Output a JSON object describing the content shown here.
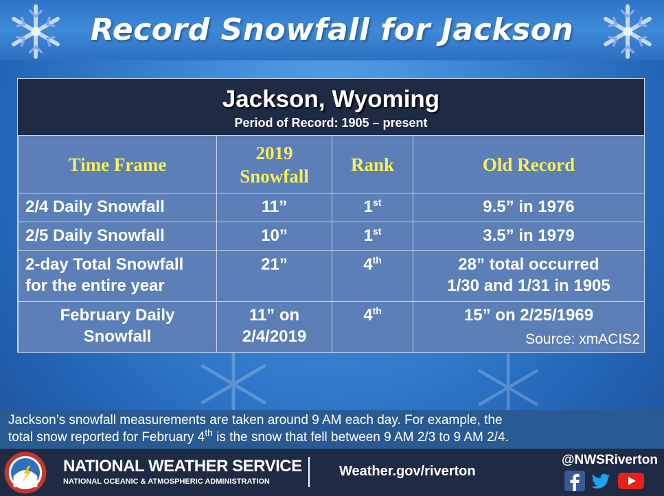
{
  "banner": {
    "title": "Record Snowfall for Jackson"
  },
  "card": {
    "city": "Jackson, Wyoming",
    "period": "Period of Record:  1905 – present",
    "headers": {
      "time_frame": "Time Frame",
      "snowfall_line1": "2019",
      "snowfall_line2": "Snowfall",
      "rank": "Rank",
      "old_record": "Old Record"
    },
    "rows": [
      {
        "time_frame": "2/4 Daily Snowfall",
        "snowfall": "11”",
        "rank_num": "1",
        "rank_suffix": "st",
        "old_record": "9.5” in 1976"
      },
      {
        "time_frame": "2/5 Daily Snowfall",
        "snowfall": "10”",
        "rank_num": "1",
        "rank_suffix": "st",
        "old_record": "3.5” in 1979"
      },
      {
        "time_frame_line1": "2-day Total Snowfall",
        "time_frame_line2": "for the entire year",
        "snowfall": "21”",
        "rank_num": "4",
        "rank_suffix": "th",
        "old_record_line1": "28” total occurred",
        "old_record_line2": "1/30 and 1/31 in 1905"
      },
      {
        "time_frame_line1": "February Daily",
        "time_frame_line2": "Snowfall",
        "snowfall_line1": "11” on",
        "snowfall_line2": "2/4/2019",
        "rank_num": "4",
        "rank_suffix": "th",
        "old_record": "15” on 2/25/1969"
      }
    ],
    "source": "Source:  xmACIS2"
  },
  "note": {
    "line1": "Jackson’s snowfall measurements are taken around 9 AM each day.  For example, the",
    "line2_pre": "total snow reported for February 4",
    "line2_sup": "th",
    "line2_post": " is the snow that fell between 9 AM 2/3 to 9 AM 2/4."
  },
  "footer": {
    "agency": "NATIONAL WEATHER SERVICE",
    "parent": "NATIONAL OCEANIC & ATMOSPHERIC ADMINISTRATION",
    "website": "Weather.gov/riverton",
    "handle": "@NWSRiverton",
    "icons": [
      "facebook-icon",
      "twitter-icon",
      "youtube-icon"
    ]
  },
  "colors": {
    "header_text": "#f7f05a",
    "table_bg": "#5b7fb6",
    "title_bar": "#1f2a44",
    "background": "#3a86d6"
  }
}
